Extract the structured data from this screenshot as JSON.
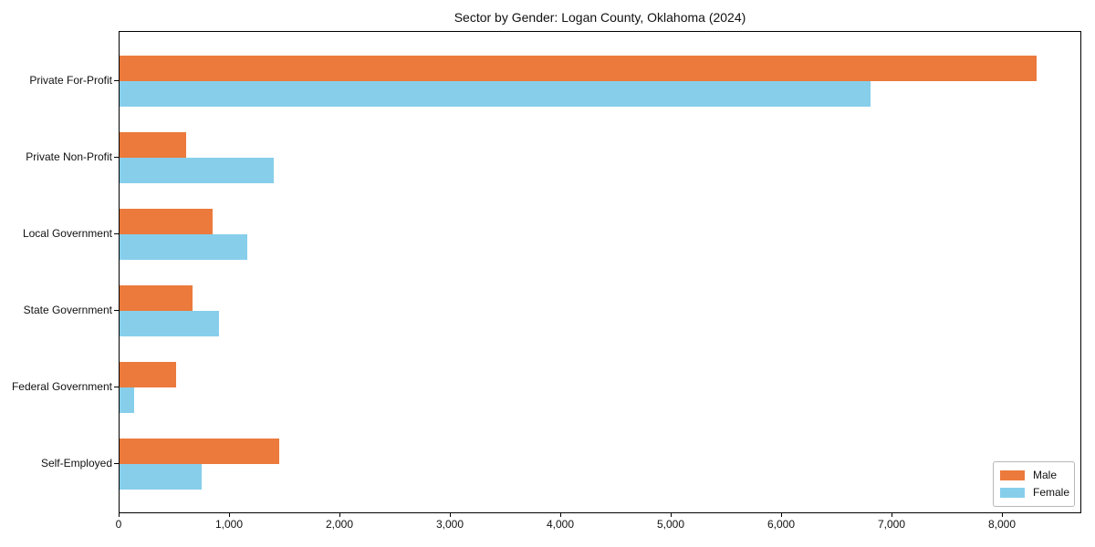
{
  "chart_data": {
    "type": "bar",
    "orientation": "horizontal",
    "title": "Sector by Gender: Logan County, Oklahoma (2024)",
    "categories": [
      "Private For-Profit",
      "Private Non-Profit",
      "Local Government",
      "State Government",
      "Federal Government",
      "Self-Employed"
    ],
    "series": [
      {
        "name": "Male",
        "color": "#eb7a3c",
        "values": [
          8300,
          600,
          845,
          660,
          510,
          1445
        ]
      },
      {
        "name": "Female",
        "color": "#87ceeb",
        "values": [
          6800,
          1400,
          1155,
          900,
          130,
          745
        ]
      }
    ],
    "xlabel": "",
    "ylabel": "",
    "xlim": [
      0,
      8715
    ],
    "x_ticks": [
      0,
      1000,
      2000,
      3000,
      4000,
      5000,
      6000,
      7000,
      8000
    ],
    "x_tick_labels": [
      "0",
      "1,000",
      "2,000",
      "3,000",
      "4,000",
      "5,000",
      "6,000",
      "7,000",
      "8,000"
    ],
    "grid": false,
    "legend": {
      "position": "lower right",
      "entries": [
        {
          "label": "Male",
          "color": "#eb7a3c"
        },
        {
          "label": "Female",
          "color": "#87ceeb"
        }
      ]
    },
    "frame_color": "#000000",
    "text_color": "#111111",
    "background_color": "#ffffff"
  }
}
